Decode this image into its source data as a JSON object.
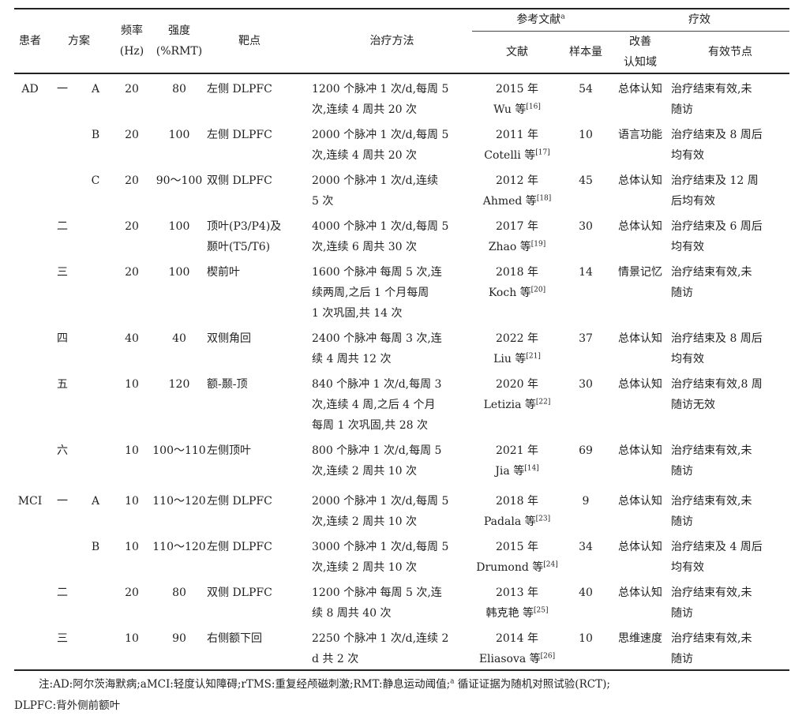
{
  "header": {
    "patient": "患者",
    "scheme": "方案",
    "freq": "频率",
    "freq_unit": "(Hz)",
    "intensity": "强度",
    "intensity_unit": "(%RMT)",
    "target": "靶点",
    "method": "治疗方法",
    "refs": "参考文献",
    "refs_mark": "a",
    "ref": "文献",
    "sample": "样本量",
    "efficacy": "疗效",
    "domain1": "改善",
    "domain2": "认知域",
    "effect": "有效节点"
  },
  "rows": [
    {
      "patient": "AD",
      "scheme": "一",
      "sub": "A",
      "freq": "20",
      "intensity": "80",
      "target": [
        "左侧 DLPFC"
      ],
      "method": [
        "1200 个脉冲 1 次/d,每周 5",
        "次,连续 4 周共 20 次"
      ],
      "year": "2015 年",
      "author": "Wu 等",
      "refno": "[16]",
      "sample": "54",
      "domain": "总体认知",
      "effect": [
        "治疗结束有效,未",
        "随访"
      ]
    },
    {
      "patient": "",
      "scheme": "",
      "sub": "B",
      "freq": "20",
      "intensity": "100",
      "target": [
        "左侧 DLPFC"
      ],
      "method": [
        "2000 个脉冲 1 次/d,每周 5",
        "次,连续 4 周共 20 次"
      ],
      "year": "2011 年",
      "author": "Cotelli 等",
      "refno": "[17]",
      "sample": "10",
      "domain": "语言功能",
      "effect": [
        "治疗结束及 8 周后",
        "均有效"
      ]
    },
    {
      "patient": "",
      "scheme": "",
      "sub": "C",
      "freq": "20",
      "intensity": "90～100",
      "target": [
        "双侧 DLPFC"
      ],
      "method": [
        "2000 个脉冲 1 次/d,连续",
        "5 次"
      ],
      "year": "2012 年",
      "author": "Ahmed 等",
      "refno": "[18]",
      "sample": "45",
      "domain": "总体认知",
      "effect": [
        "治疗结束及 12 周",
        "后均有效"
      ]
    },
    {
      "patient": "",
      "scheme": "二",
      "sub": "",
      "freq": "20",
      "intensity": "100",
      "target": [
        "顶叶(P3/P4)及",
        "颞叶(T5/T6)"
      ],
      "method": [
        "4000 个脉冲 1 次/d,每周 5",
        "次,连续 6 周共 30 次"
      ],
      "year": "2017 年",
      "author": "Zhao 等",
      "refno": "[19]",
      "sample": "30",
      "domain": "总体认知",
      "effect": [
        "治疗结束及 6 周后",
        "均有效"
      ]
    },
    {
      "patient": "",
      "scheme": "三",
      "sub": "",
      "freq": "20",
      "intensity": "100",
      "target": [
        "楔前叶"
      ],
      "method": [
        "1600 个脉冲 每周 5 次,连",
        "续两周,之后 1 个月每周",
        "1 次巩固,共 14 次"
      ],
      "year": "2018 年",
      "author": "Koch 等",
      "refno": "[20]",
      "sample": "14",
      "domain": "情景记忆",
      "effect": [
        "治疗结束有效,未",
        "随访"
      ]
    },
    {
      "patient": "",
      "scheme": "四",
      "sub": "",
      "freq": "40",
      "intensity": "40",
      "target": [
        "双侧角回"
      ],
      "method": [
        "2400 个脉冲 每周 3 次,连",
        "续 4 周共 12 次"
      ],
      "year": "2022 年",
      "author": "Liu 等",
      "refno": "[21]",
      "sample": "37",
      "domain": "总体认知",
      "effect": [
        "治疗结束及 8 周后",
        "均有效"
      ]
    },
    {
      "patient": "",
      "scheme": "五",
      "sub": "",
      "freq": "10",
      "intensity": "120",
      "target": [
        "额-颞-顶"
      ],
      "method": [
        "840 个脉冲 1 次/d,每周 3",
        "次,连续 4 周,之后 4 个月",
        "每周 1 次巩固,共 28 次"
      ],
      "year": "2020 年",
      "author": "Letizia 等",
      "refno": "[22]",
      "sample": "30",
      "domain": "总体认知",
      "effect": [
        "治疗结束有效,8 周",
        "随访无效"
      ]
    },
    {
      "patient": "",
      "scheme": "六",
      "sub": "",
      "freq": "10",
      "intensity": "100～110",
      "target": [
        "左侧顶叶"
      ],
      "method": [
        "800 个脉冲 1 次/d,每周 5",
        "次,连续 2 周共 10 次"
      ],
      "year": "2021 年",
      "author": "Jia 等",
      "refno": "[14]",
      "sample": "69",
      "domain": "总体认知",
      "effect": [
        "治疗结束有效,未",
        "随访"
      ]
    },
    {
      "patient": "MCI",
      "scheme": "一",
      "sub": "A",
      "freq": "10",
      "intensity": "110～120",
      "target": [
        "左侧 DLPFC"
      ],
      "method": [
        "2000 个脉冲 1 次/d,每周 5",
        "次,连续 2 周共 10 次"
      ],
      "year": "2018 年",
      "author": "Padala 等",
      "refno": "[23]",
      "sample": "9",
      "domain": "总体认知",
      "effect": [
        "治疗结束有效,未",
        "随访"
      ]
    },
    {
      "patient": "",
      "scheme": "",
      "sub": "B",
      "freq": "10",
      "intensity": "110～120",
      "target": [
        "左侧 DLPFC"
      ],
      "method": [
        "3000 个脉冲 1 次/d,每周 5",
        "次,连续 2 周共 10 次"
      ],
      "year": "2015 年",
      "author": "Drumond 等",
      "refno": "[24]",
      "sample": "34",
      "domain": "总体认知",
      "effect": [
        "治疗结束及 4 周后",
        "均有效"
      ]
    },
    {
      "patient": "",
      "scheme": "二",
      "sub": "",
      "freq": "20",
      "intensity": "80",
      "target": [
        "双侧 DLPFC"
      ],
      "method": [
        "1200 个脉冲 每周 5 次,连",
        "续 8 周共 40 次"
      ],
      "year": "2013 年",
      "author": "韩克艳 等",
      "refno": "[25]",
      "sample": "40",
      "domain": "总体认知",
      "effect": [
        "治疗结束有效,未",
        "随访"
      ]
    },
    {
      "patient": "",
      "scheme": "三",
      "sub": "",
      "freq": "10",
      "intensity": "90",
      "target": [
        "右侧额下回"
      ],
      "method": [
        "2250 个脉冲 1 次/d,连续 2",
        "d 共 2 次"
      ],
      "year": "2014 年",
      "author": "Eliasova 等",
      "refno": "[26]",
      "sample": "10",
      "domain": "思维速度",
      "effect": [
        "治疗结束有效,未",
        "随访"
      ]
    }
  ],
  "note": {
    "line1": "注:AD:阿尔茨海默病;aMCI:轻度认知障碍;rTMS:重复经颅磁刺激;RMT:静息运动阈值;",
    "mark": "a",
    "line1b": " 循证证据为随机对照试验(RCT);",
    "line2": "DLPFC:背外侧前额叶"
  }
}
